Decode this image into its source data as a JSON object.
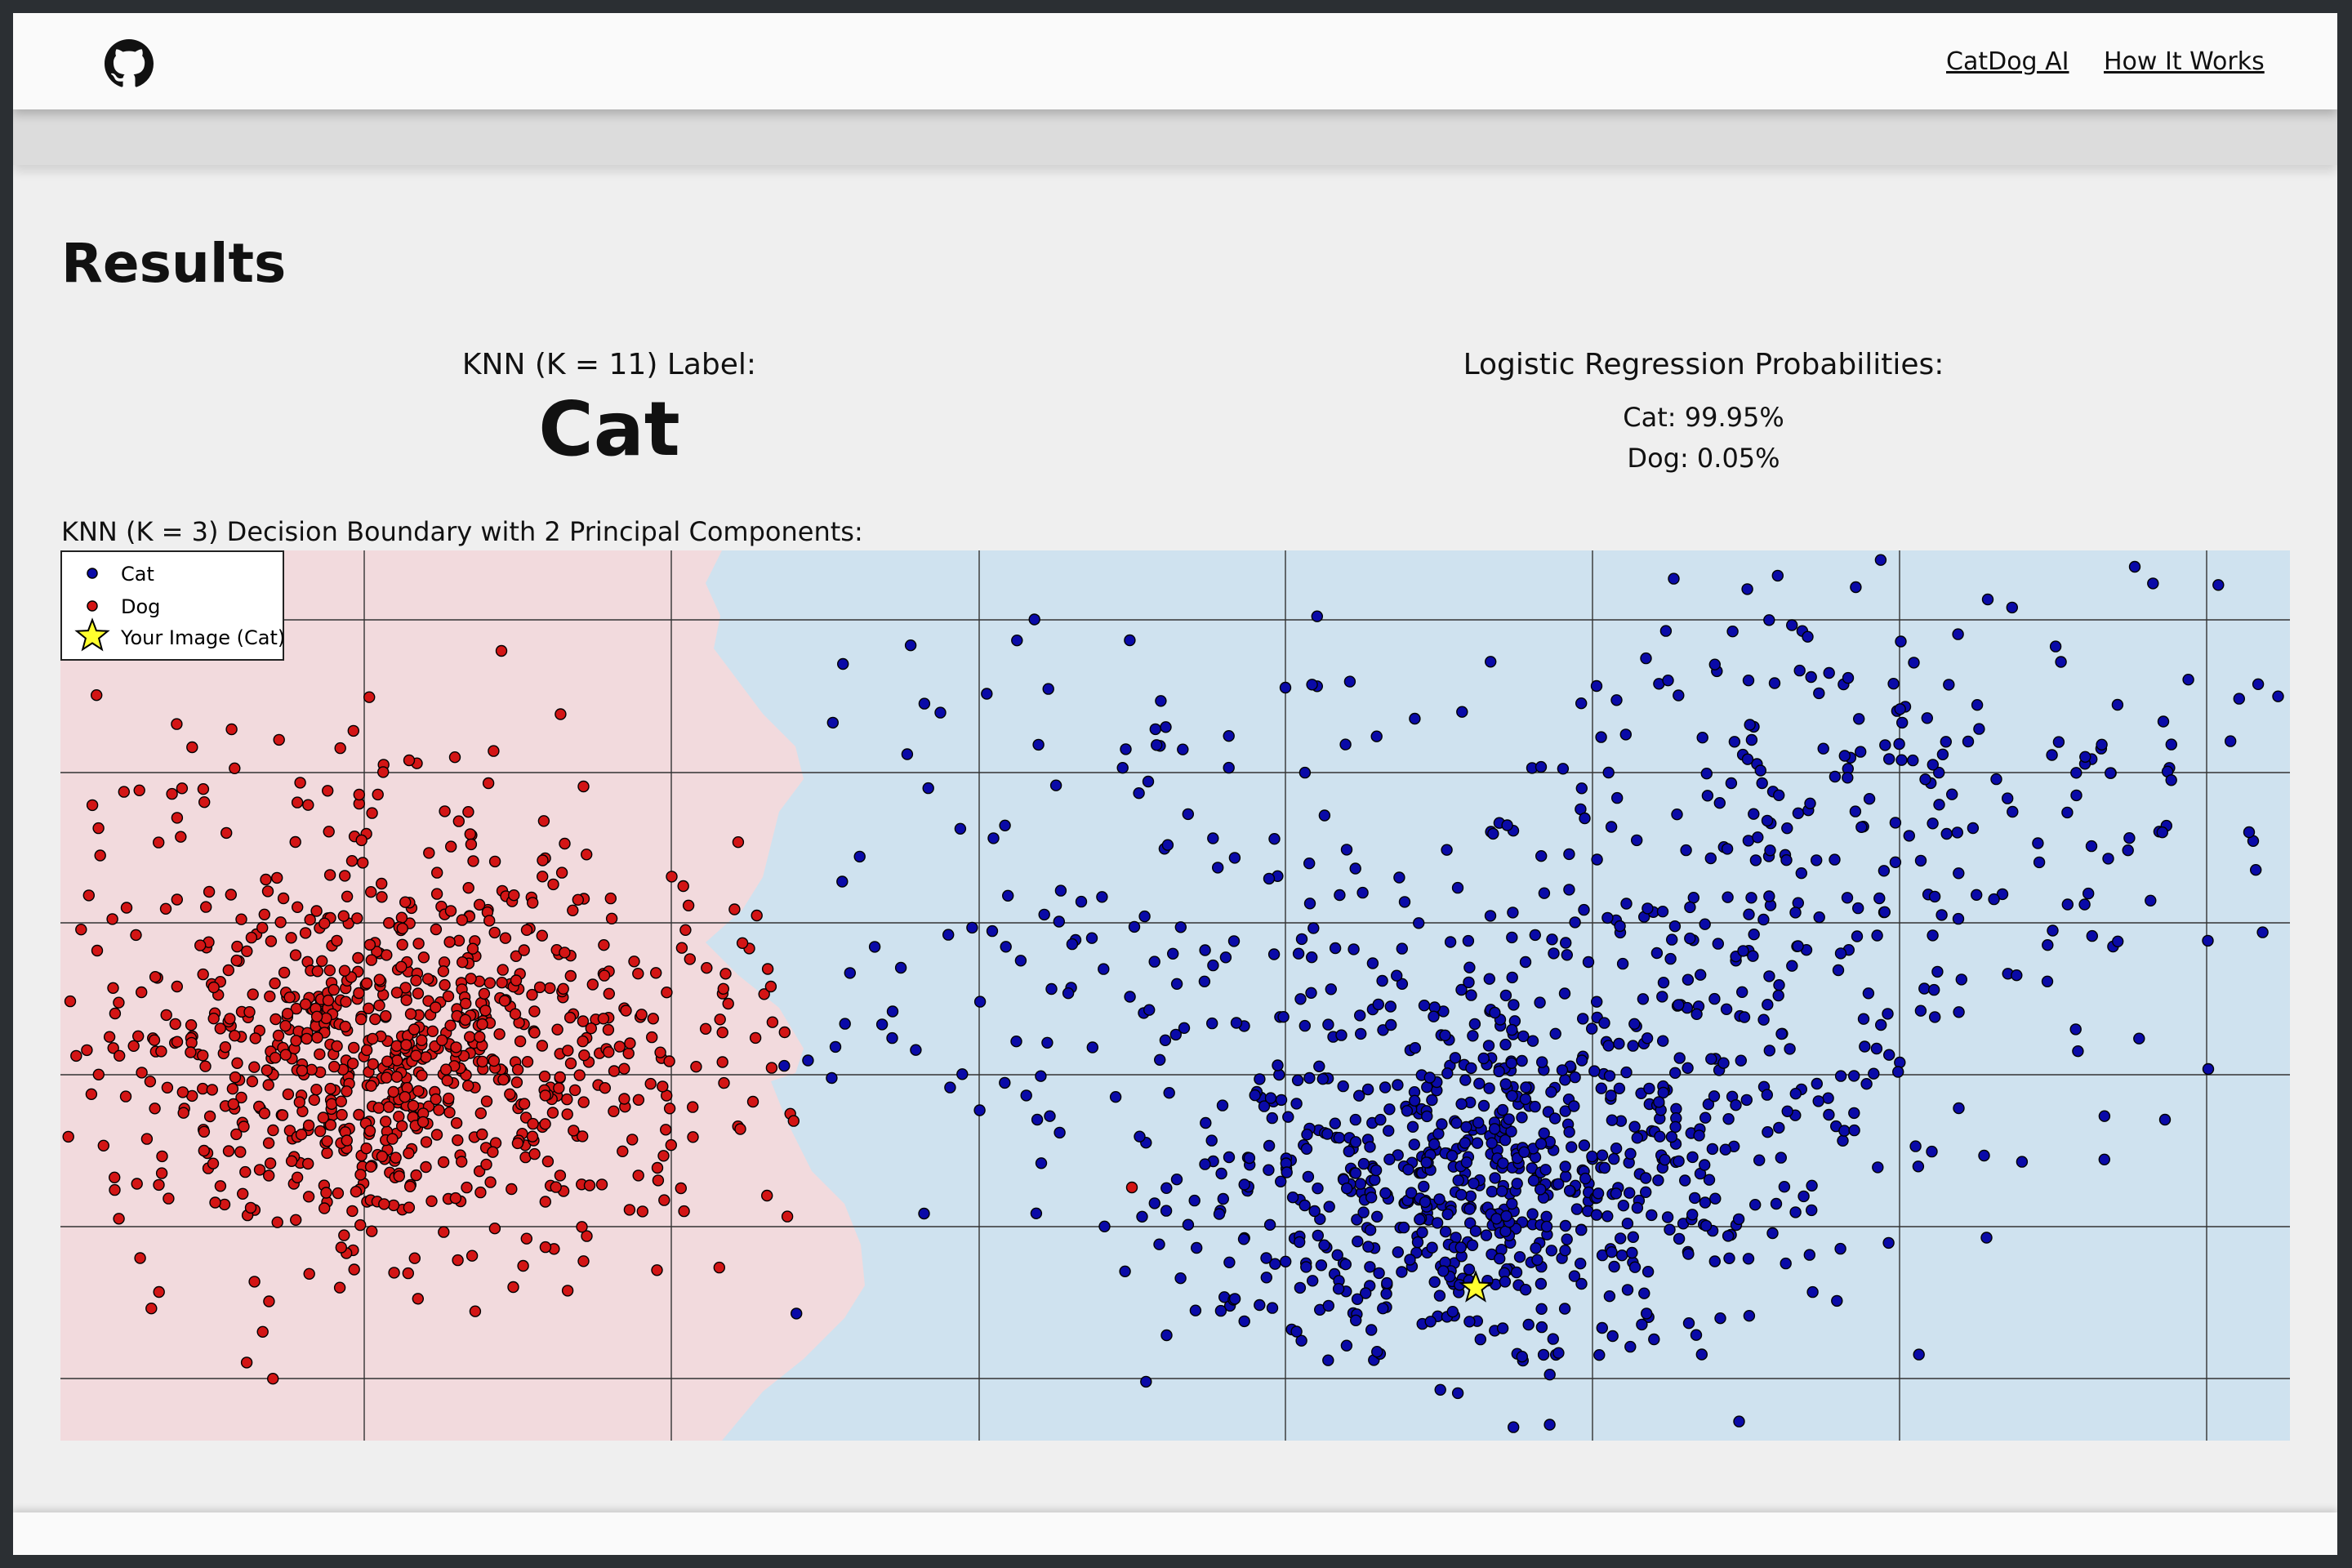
{
  "nav": {
    "github_icon": "github-icon",
    "links": [
      "CatDog AI",
      "How It Works"
    ]
  },
  "results": {
    "title": "Results",
    "knn_label_title": "KNN (K = 11) Label:",
    "knn_label_value": "Cat",
    "lr_title": "Logistic Regression Probabilities:",
    "lr_lines": [
      "Cat: 99.95%",
      "Dog: 0.05%"
    ]
  },
  "plot": {
    "title": "KNN (K = 3) Decision Boundary with 2 Principal Components:",
    "colors": {
      "cat": "#0a0aa8",
      "dog": "#d31515",
      "cat_region": "#cfe2ef",
      "dog_region": "#f2dadd",
      "star": "#ffff2e"
    }
  },
  "chart_data": {
    "type": "scatter",
    "title": "",
    "xlabel": "",
    "ylabel": "",
    "xlim": [
      0,
      2730
    ],
    "ylim": [
      0,
      1090
    ],
    "grid": true,
    "legend_position": "top-left",
    "series": [
      {
        "name": "Cat",
        "color": "#0a0aa8",
        "clusters": [
          {
            "cx": 1720,
            "cy": 780,
            "sx": 180,
            "sy": 110,
            "n": 620
          },
          {
            "cx": 1960,
            "cy": 620,
            "sx": 210,
            "sy": 170,
            "n": 260
          },
          {
            "cx": 2260,
            "cy": 300,
            "sx": 250,
            "sy": 150,
            "n": 210
          },
          {
            "cx": 1350,
            "cy": 430,
            "sx": 300,
            "sy": 180,
            "n": 150
          }
        ]
      },
      {
        "name": "Dog",
        "color": "#d31515",
        "clusters": [
          {
            "cx": 420,
            "cy": 620,
            "sx": 190,
            "sy": 115,
            "n": 860
          },
          {
            "cx": 350,
            "cy": 350,
            "sx": 170,
            "sy": 80,
            "n": 60
          }
        ]
      },
      {
        "name": "Your Image (Cat)",
        "marker": "star",
        "color": "#ffff2e",
        "points": [
          [
            1733,
            903
          ]
        ]
      }
    ],
    "outliers": {
      "Dog": [
        [
          540,
          123
        ],
        [
          427,
          257
        ],
        [
          1312,
          780
        ],
        [
          45,
          490
        ],
        [
          848,
          675
        ]
      ],
      "Cat": [
        [
          2540,
          20
        ],
        [
          2360,
          60
        ],
        [
          2680,
          345
        ],
        [
          2630,
          635
        ],
        [
          2577,
          697
        ],
        [
          1500,
          168
        ]
      ]
    },
    "decision_boundary": "dog region on left, cat region on right, wavy boundary near x ≈ 800-1000"
  }
}
